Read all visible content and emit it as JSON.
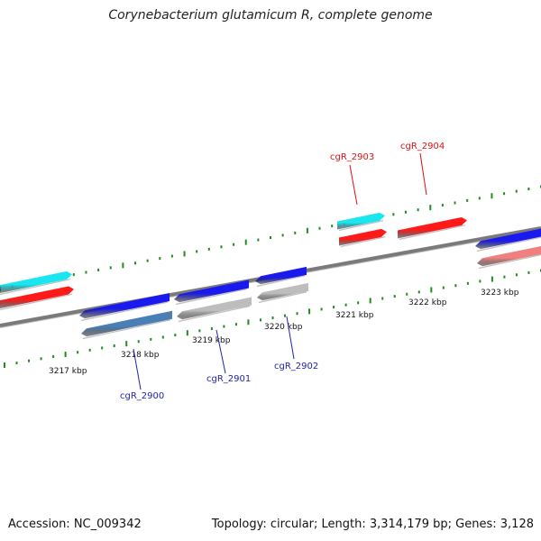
{
  "title": "Corynebacterium glutamicum R, complete genome",
  "footer": {
    "accession": "Accession: NC_009342",
    "info": "Topology: circular; Length: 3,314,179 bp; Genes: 3,128"
  },
  "colors": {
    "backbone": "#7a7a7a",
    "tick": "#1e8c1e",
    "red": "#ff1a1a",
    "cyan": "#1ae6f0",
    "blue": "#1a1aee",
    "steelblue": "#4a7fb5",
    "gray": "#bdbdbd",
    "pink": "#f08080",
    "red_label": "#dd1111",
    "blue_label": "#2222aa"
  },
  "ticks": [
    {
      "label": "3217 kbp"
    },
    {
      "label": "3218 kbp"
    },
    {
      "label": "3219 kbp"
    },
    {
      "label": "3220 kbp"
    },
    {
      "label": "3221 kbp"
    },
    {
      "label": "3222 kbp"
    },
    {
      "label": "3223 kbp"
    }
  ],
  "genes": [
    {
      "id": "g1",
      "color": "cyan",
      "strand": "+"
    },
    {
      "id": "g2",
      "color": "red",
      "strand": "+"
    },
    {
      "id": "g3",
      "color": "blue",
      "strand": "-"
    },
    {
      "id": "g4",
      "color": "steelblue",
      "strand": "-"
    },
    {
      "id": "g5",
      "color": "blue",
      "strand": "-"
    },
    {
      "id": "g6",
      "color": "gray",
      "strand": "-"
    },
    {
      "id": "g7",
      "color": "blue",
      "strand": "-"
    },
    {
      "id": "g8",
      "color": "gray",
      "strand": "-"
    },
    {
      "id": "g9",
      "color": "cyan",
      "strand": "+"
    },
    {
      "id": "g10",
      "color": "red",
      "strand": "+"
    },
    {
      "id": "g11",
      "color": "red",
      "strand": "+"
    },
    {
      "id": "g12",
      "color": "blue",
      "strand": "-"
    },
    {
      "id": "g13",
      "color": "pink",
      "strand": "-"
    }
  ],
  "gene_labels": [
    {
      "text": "cgR_2903",
      "color": "red_label"
    },
    {
      "text": "cgR_2904",
      "color": "red_label"
    },
    {
      "text": "cgR_2900",
      "color": "blue_label"
    },
    {
      "text": "cgR_2901",
      "color": "blue_label"
    },
    {
      "text": "cgR_2902",
      "color": "blue_label"
    }
  ]
}
